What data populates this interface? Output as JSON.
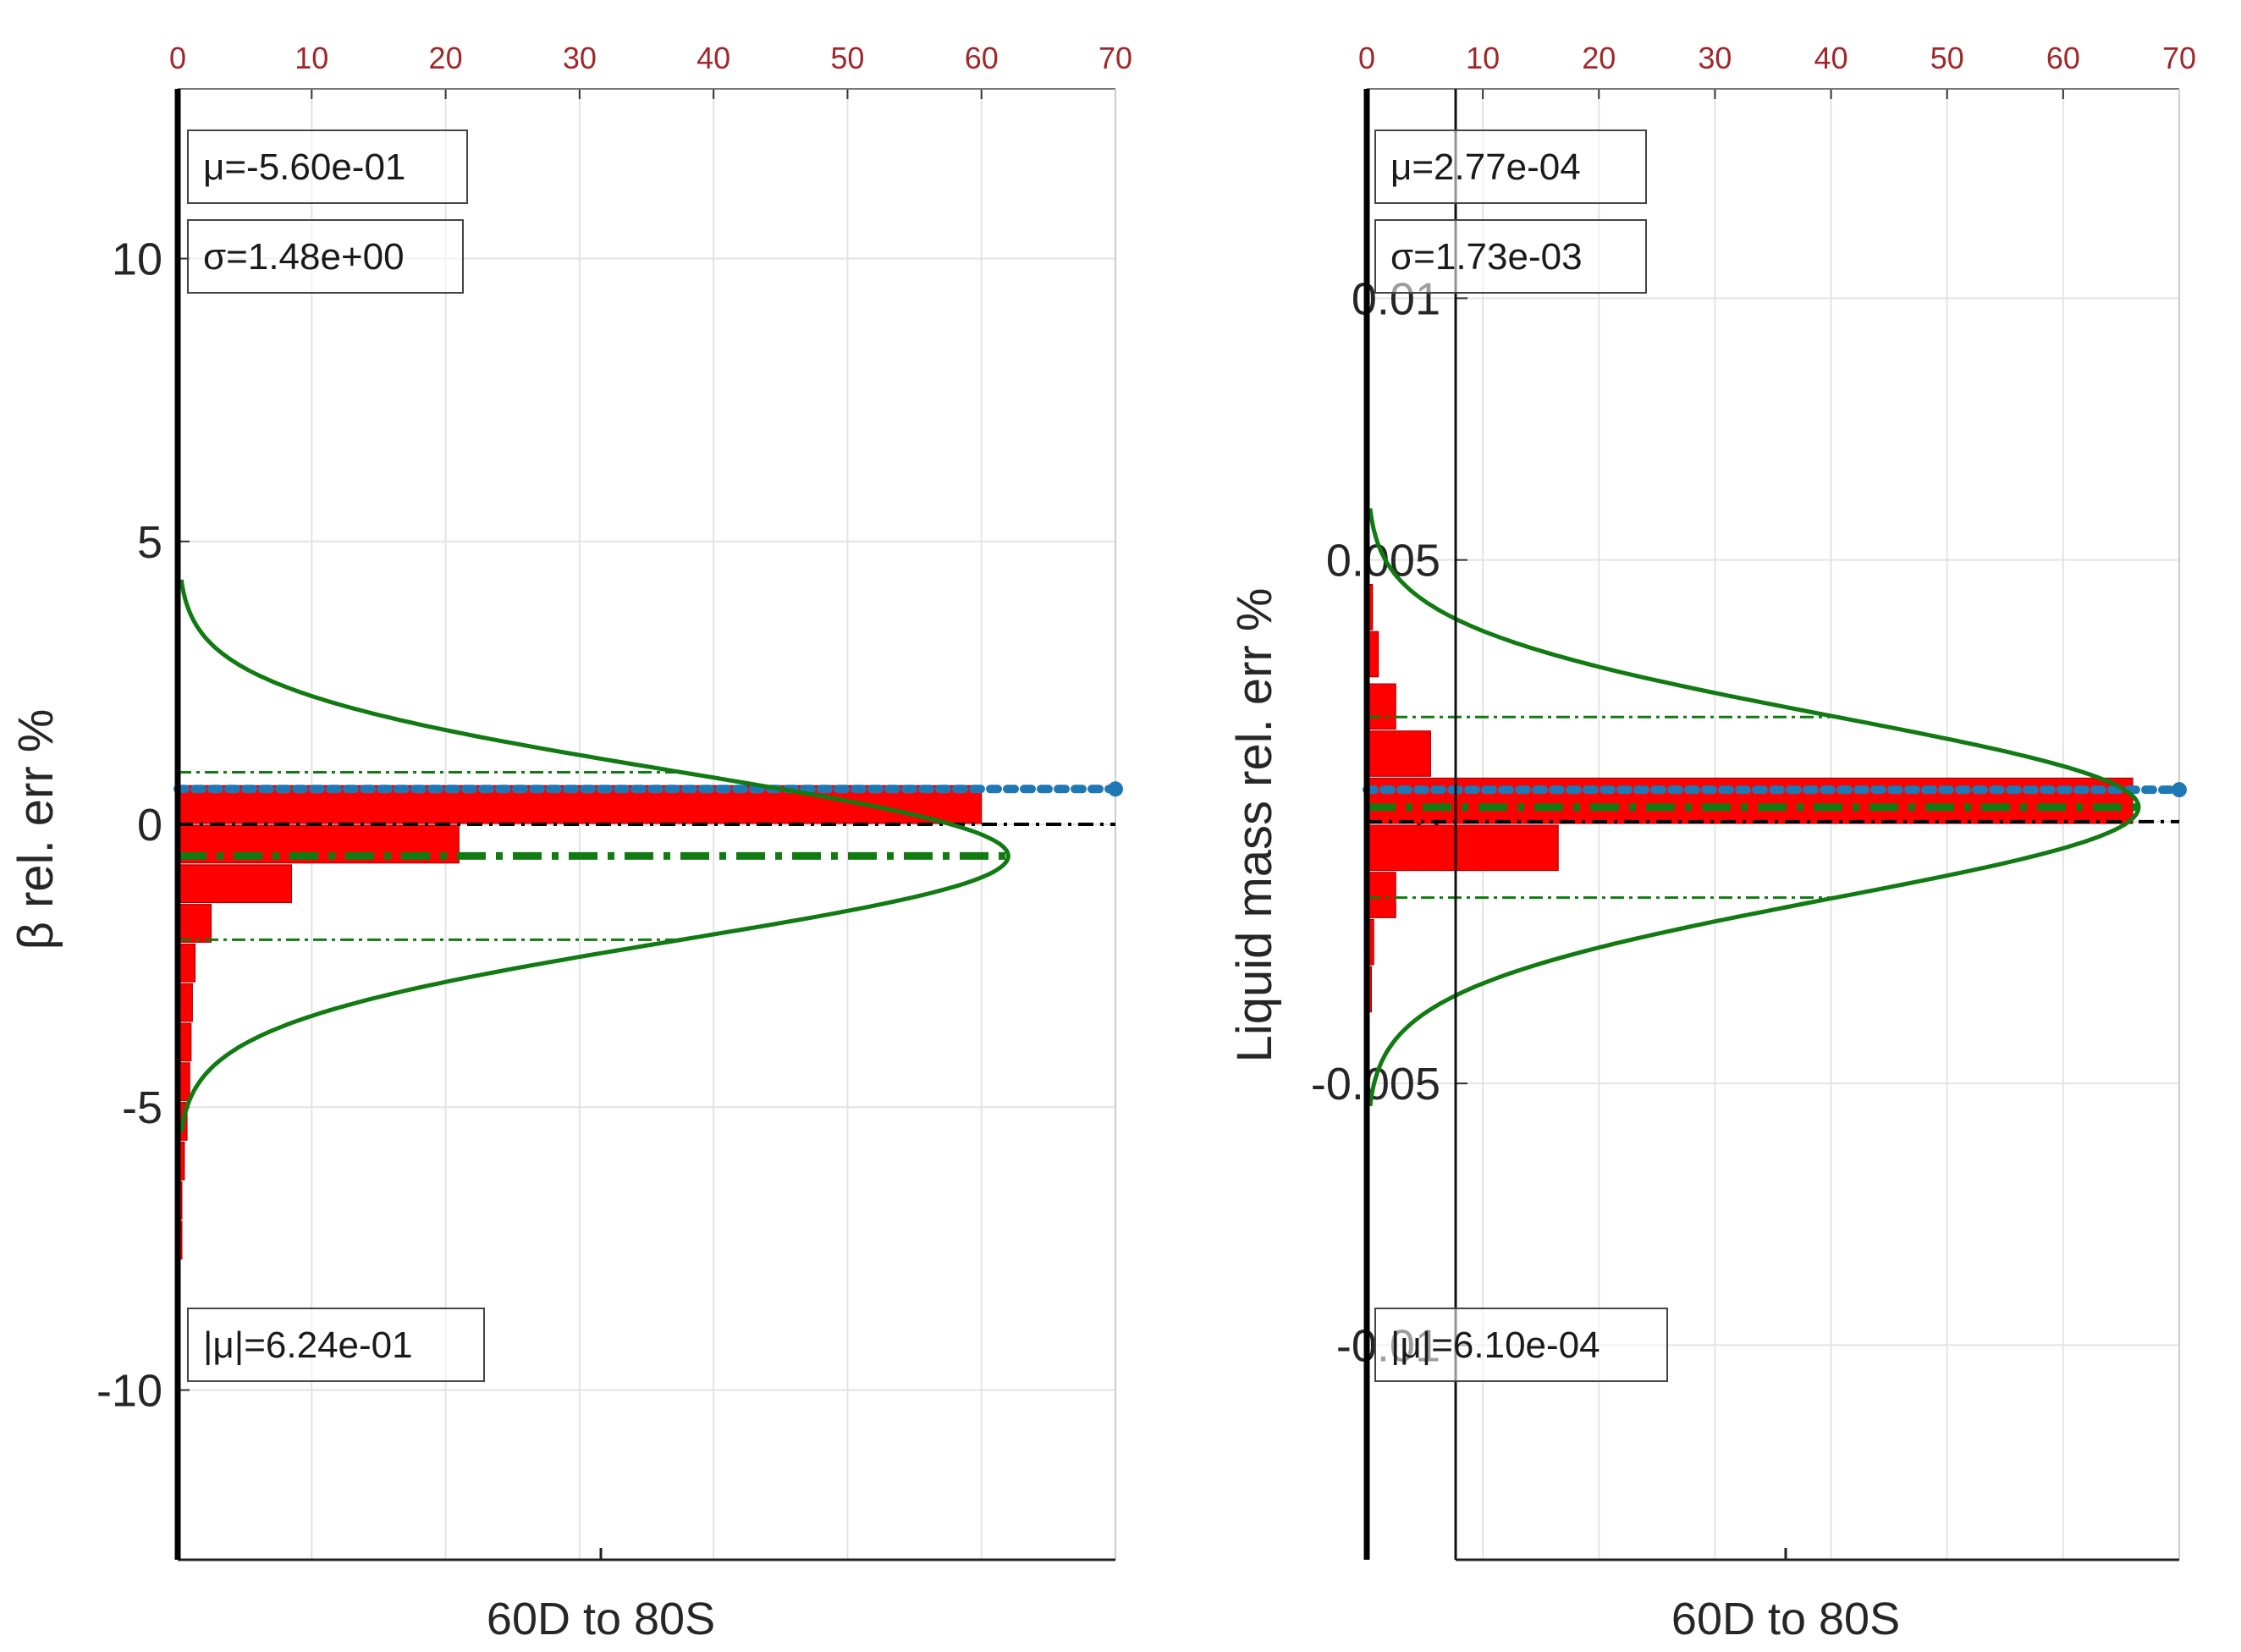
{
  "chart_data": [
    {
      "type": "bar",
      "orientation": "horizontal",
      "title": "",
      "xlabel": "60D to 80S",
      "ylabel": "β rel. err %",
      "top_axis_ticks": [
        "0",
        "10",
        "20",
        "30",
        "40",
        "50",
        "60",
        "70"
      ],
      "left_axis_ticks": [
        "10",
        "5",
        "0",
        "-5",
        "-10"
      ],
      "top_axis_range": [
        0,
        70
      ],
      "ylim": [
        -13,
        13
      ],
      "grid": true,
      "bins": {
        "centers": [
          0.35,
          -0.35,
          -1.05,
          -1.75,
          -2.45,
          -3.15,
          -3.85,
          -4.55,
          -5.25,
          -5.95,
          -6.65,
          -7.35
        ],
        "counts": [
          60,
          21,
          8.5,
          2.5,
          1.3,
          1.1,
          1.0,
          0.9,
          0.7,
          0.5,
          0.3,
          0.2
        ]
      },
      "normal_fit": {
        "mu": -0.56,
        "sigma": 1.48,
        "peak": 62
      },
      "reference_lines": {
        "mean": -0.56,
        "mean_plus_sigma": 0.92,
        "mean_minus_sigma": -2.04,
        "zero": 0,
        "abs_mean": 0.624
      },
      "stats": {
        "mu": "μ=-5.60e-01",
        "sigma": "σ=1.48e+00",
        "abs_mu": "|μ|=6.24e-01"
      }
    },
    {
      "type": "bar",
      "orientation": "horizontal",
      "title": "",
      "xlabel": "60D to 80S",
      "ylabel": "Liquid mass rel. err %",
      "top_axis_ticks": [
        "0",
        "10",
        "20",
        "30",
        "40",
        "50",
        "60",
        "70"
      ],
      "left_axis_ticks": [
        "0.01",
        "0.005",
        "0",
        "-0.005",
        "-0.01"
      ],
      "top_axis_range": [
        0,
        70
      ],
      "ylim": [
        -0.0141,
        0.014
      ],
      "grid": true,
      "bins": {
        "centers": [
          0.0041,
          0.0032,
          0.0022,
          0.0013,
          0.0004,
          -0.0005,
          -0.0014,
          -0.0023,
          -0.0032
        ],
        "counts": [
          0.5,
          1.0,
          2.5,
          5.5,
          66,
          16.5,
          2.5,
          0.6,
          0.4
        ]
      },
      "normal_fit": {
        "mu": 0.000277,
        "sigma": 0.00173,
        "peak": 66.5
      },
      "reference_lines": {
        "mean": 0.000277,
        "mean_plus_sigma": 0.002,
        "mean_minus_sigma": -0.00145,
        "zero": 0,
        "abs_mean": 0.00061
      },
      "stats": {
        "mu": "μ=2.77e-04",
        "sigma": "σ=1.73e-03",
        "abs_mu": "|μ|=6.10e-04"
      }
    }
  ],
  "colors": {
    "bar": "#ff0000",
    "bar_edge": "#a00000",
    "fit": "#127a12",
    "abs_mean_line": "#1f77b4",
    "zero_line": "#000000",
    "top_ticks": "#a0282a",
    "grid": "#e3e3e3"
  }
}
